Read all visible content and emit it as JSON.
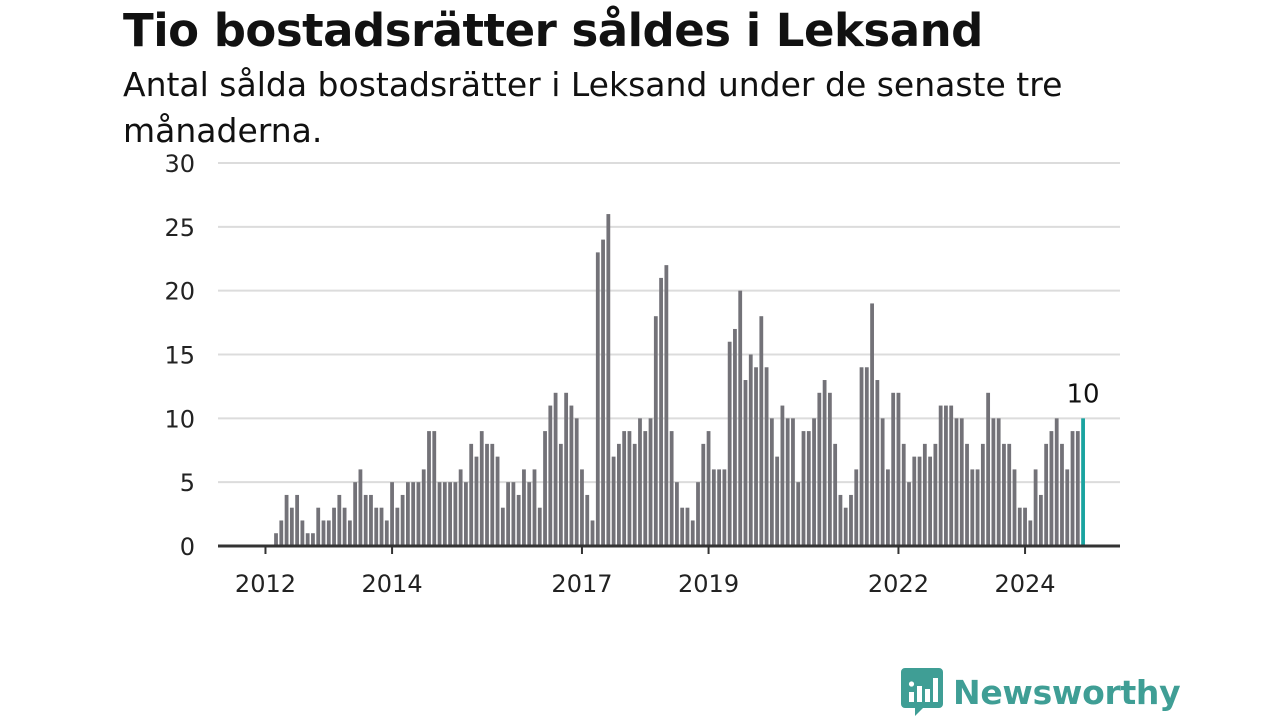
{
  "title": "Tio bostadsrätter såldes i Leksand",
  "subtitle": "Antal sålda bostadsrätter i Leksand under de senaste tre månaderna.",
  "logo": {
    "text": "Newsworthy",
    "icon": "bar-chart-speech-bubble-icon"
  },
  "colors": {
    "bar": "#737278",
    "highlight": "#1aa3a0",
    "grid": "#dcdcdc",
    "axis": "#333333",
    "brand": "#3f9e95"
  },
  "chart_data": {
    "type": "bar",
    "title": "Tio bostadsrätter såldes i Leksand",
    "subtitle": "Antal sålda bostadsrätter i Leksand under de senaste tre månaderna.",
    "xlabel": "",
    "ylabel": "",
    "ylim": [
      0,
      30
    ],
    "yticks": [
      0,
      5,
      10,
      15,
      20,
      25,
      30
    ],
    "xlim": [
      2011.25,
      2025.5
    ],
    "xticks": [
      2012,
      2014,
      2017,
      2019,
      2022,
      2024
    ],
    "grid": true,
    "highlight_label": "10",
    "x_start": 2012,
    "x_step": 0.0833333,
    "values": [
      0,
      0,
      1,
      2,
      4,
      3,
      4,
      2,
      1,
      1,
      3,
      2,
      2,
      3,
      4,
      3,
      2,
      5,
      6,
      4,
      4,
      3,
      3,
      2,
      5,
      3,
      4,
      5,
      5,
      5,
      6,
      9,
      9,
      5,
      5,
      5,
      5,
      6,
      5,
      8,
      7,
      9,
      8,
      8,
      7,
      3,
      5,
      5,
      4,
      6,
      5,
      6,
      3,
      9,
      11,
      12,
      8,
      12,
      11,
      10,
      6,
      4,
      2,
      23,
      24,
      26,
      7,
      8,
      9,
      9,
      8,
      10,
      9,
      10,
      18,
      21,
      22,
      9,
      5,
      3,
      3,
      2,
      5,
      8,
      9,
      6,
      6,
      6,
      16,
      17,
      20,
      13,
      15,
      14,
      18,
      14,
      10,
      7,
      11,
      10,
      10,
      5,
      9,
      9,
      10,
      12,
      13,
      12,
      8,
      4,
      3,
      4,
      6,
      14,
      14,
      19,
      13,
      10,
      6,
      12,
      12,
      8,
      5,
      7,
      7,
      8,
      7,
      8,
      11,
      11,
      11,
      10,
      10,
      8,
      6,
      6,
      8,
      12,
      10,
      10,
      8,
      8,
      6,
      3,
      3,
      2,
      6,
      4,
      8,
      9,
      10,
      8,
      6,
      9,
      9,
      10
    ]
  }
}
